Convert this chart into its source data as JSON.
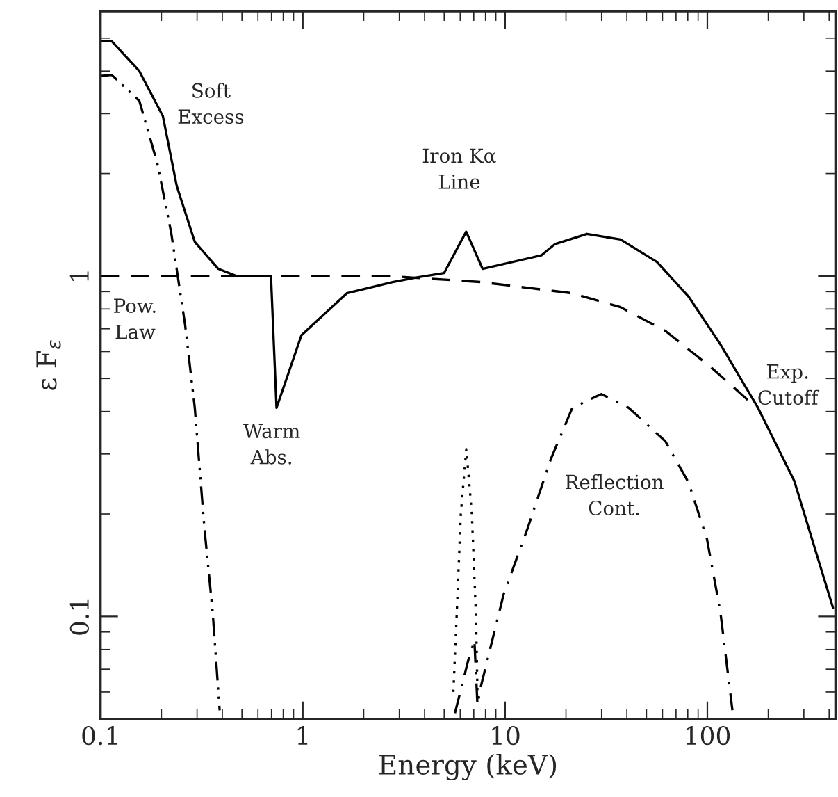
{
  "chart_data": {
    "type": "line",
    "xlabel": "Energy (keV)",
    "ylabel": "ε F$_{ε}$",
    "log": "xy",
    "xlim": [
      0.1,
      430
    ],
    "ylim": [
      0.05,
      6
    ],
    "xticks": [
      0.1,
      1,
      10,
      100
    ],
    "yticks": [
      0.1,
      1
    ],
    "grid": false,
    "legend": false,
    "series": [
      {
        "color": "#000000",
        "line_style": "solid",
        "x": [
          0.1,
          0.1135,
          0.1555,
          0.2033,
          0.238,
          0.2923,
          0.3818,
          0.4697,
          0.6958,
          0.7413,
          0.9845,
          1.65,
          2.78,
          3.63,
          4.99,
          6.42,
          7.74,
          15.1,
          17.6,
          25.4,
          37.2,
          56.3,
          80.8,
          116,
          178,
          269,
          418
        ],
        "values": [
          4.9,
          4.9,
          4.0,
          2.95,
          1.84,
          1.26,
          1.05,
          1.0,
          1.0,
          0.41,
          0.67,
          0.89,
          0.96,
          0.99,
          1.02,
          1.35,
          1.05,
          1.15,
          1.24,
          1.33,
          1.28,
          1.1,
          0.87,
          0.63,
          0.41,
          0.25,
          0.106
        ]
      },
      {
        "color": "#000000",
        "line_style": "dashed",
        "x": [
          0.1,
          1,
          2.65,
          7.6,
          21.5,
          37.2,
          62.0,
          104,
          160
        ],
        "values": [
          1.0,
          1.0,
          1.0,
          0.96,
          0.89,
          0.81,
          0.69,
          0.54,
          0.43
        ]
      },
      {
        "color": "#000000",
        "line_style": "dashdotdot",
        "x": [
          0.1,
          0.1135,
          0.1555,
          0.191,
          0.2235,
          0.2617,
          0.2923,
          0.3264,
          0.3583,
          0.388
        ],
        "values": [
          3.87,
          3.9,
          3.27,
          2.14,
          1.34,
          0.72,
          0.41,
          0.181,
          0.103,
          0.053
        ]
      },
      {
        "color": "#000000",
        "line_style": "dotted",
        "x": [
          5.55,
          5.76,
          6.04,
          6.43,
          6.85,
          7.18,
          7.3
        ],
        "values": [
          0.06,
          0.1,
          0.2,
          0.31,
          0.2,
          0.1,
          0.06
        ]
      },
      {
        "color": "#000000",
        "line_style": "dashdot",
        "x": [
          5.65,
          6.6,
          7.05,
          7.3,
          7.6,
          9.83,
          12.9,
          16.8,
          21.5,
          29.9,
          40.9,
          62,
          80.8,
          99.5,
          116,
          133
        ],
        "values": [
          0.052,
          0.075,
          0.085,
          0.055,
          0.0625,
          0.116,
          0.181,
          0.289,
          0.41,
          0.45,
          0.41,
          0.327,
          0.247,
          0.169,
          0.103,
          0.053
        ]
      }
    ],
    "annotations": [
      "Soft\nExcess",
      "Pow.\nLaw",
      "Warm\nAbs.",
      "Iron Kα\nLine",
      "Exp.\nCutoff",
      "Reflection\nCont."
    ]
  }
}
